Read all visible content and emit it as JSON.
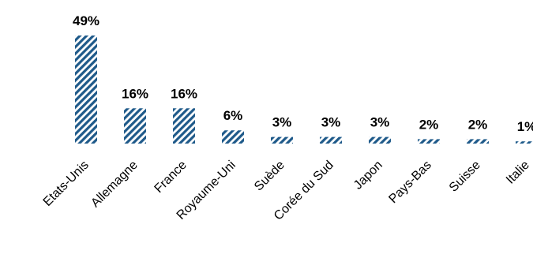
{
  "chart_data": {
    "type": "bar",
    "title": "",
    "xlabel": "",
    "ylabel": "",
    "categories": [
      "Etats-Unis",
      "Allemagne",
      "France",
      "Royaume-Uni",
      "Suède",
      "Corée du Sud",
      "Japon",
      "Pays-Bas",
      "Suisse",
      "Italie"
    ],
    "values": [
      49,
      16,
      16,
      6,
      3,
      3,
      3,
      2,
      2,
      1
    ],
    "data_labels": [
      "49%",
      "16%",
      "16%",
      "6%",
      "3%",
      "3%",
      "3%",
      "2%",
      "2%",
      "1%"
    ],
    "unit": "%",
    "ylim": [
      0,
      49
    ],
    "grid": false,
    "legend": "none",
    "colors": {
      "bar": "#1f5a8a",
      "stripe_bg": "#ffffff",
      "text": "#000000"
    }
  }
}
